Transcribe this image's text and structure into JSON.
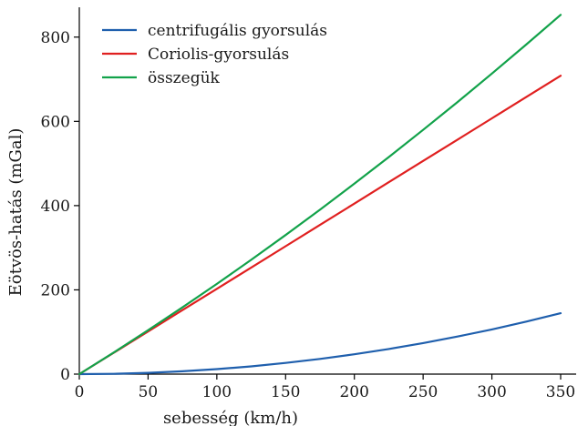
{
  "chart_data": {
    "type": "line",
    "title": "",
    "xlabel": "sebesség (km/h)",
    "ylabel": "Eötvös-hatás (mGal)",
    "xlim": [
      0,
      350
    ],
    "ylim": [
      0,
      860
    ],
    "x_ticks": [
      0,
      50,
      100,
      150,
      200,
      250,
      300,
      350
    ],
    "y_ticks": [
      0,
      200,
      400,
      600,
      800
    ],
    "grid": false,
    "legend_position": "top-left",
    "x": [
      0,
      25,
      50,
      75,
      100,
      125,
      150,
      175,
      200,
      225,
      250,
      275,
      300,
      325,
      350
    ],
    "series": [
      {
        "name": "centrifugális gyorsulás",
        "color": "#1f5fad",
        "values": [
          0,
          0.7,
          3,
          6.6,
          11.8,
          18.4,
          26.5,
          36.1,
          47.2,
          59.7,
          73.7,
          89.2,
          106.2,
          124.6,
          144.5
        ]
      },
      {
        "name": "Coriolis-gyorsulás",
        "color": "#e02020",
        "values": [
          0,
          50.6,
          101.2,
          151.8,
          202.4,
          253,
          303.6,
          354.2,
          404.8,
          455.4,
          506,
          556.6,
          607.2,
          657.8,
          708.4
        ]
      },
      {
        "name": "összegük",
        "color": "#12a24a",
        "values": [
          0,
          51.3,
          104.2,
          158.4,
          214.2,
          271.4,
          330.1,
          390.3,
          452,
          515.1,
          579.7,
          645.8,
          713.4,
          782.4,
          852.9
        ]
      }
    ]
  }
}
